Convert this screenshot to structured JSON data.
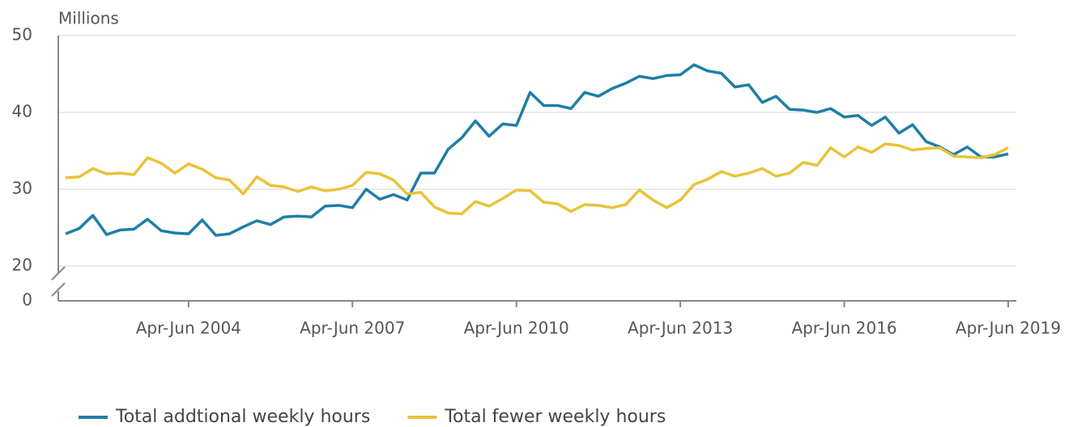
{
  "chart_data": {
    "type": "line",
    "ylabel": "Millions",
    "categories": [
      null,
      null,
      null,
      null,
      null,
      null,
      null,
      null,
      null,
      "Apr-Jun 2004",
      null,
      null,
      null,
      null,
      null,
      null,
      null,
      null,
      null,
      null,
      null,
      "Apr-Jun 2007",
      null,
      null,
      null,
      null,
      null,
      null,
      null,
      null,
      null,
      null,
      null,
      "Apr-Jun 2010",
      null,
      null,
      null,
      null,
      null,
      null,
      null,
      null,
      null,
      null,
      null,
      "Apr-Jun 2013",
      null,
      null,
      null,
      null,
      null,
      null,
      null,
      null,
      null,
      null,
      null,
      "Apr-Jun 2016",
      null,
      null,
      null,
      null,
      null,
      null,
      null,
      null,
      null,
      null,
      null,
      "Apr-Jun 2019"
    ],
    "series": [
      {
        "name": "Total addtional weekly hours",
        "color": "#1f7ea6",
        "values": [
          24.2,
          24.9,
          26.6,
          24.1,
          24.7,
          24.8,
          26.1,
          24.6,
          24.3,
          24.2,
          26.0,
          24.0,
          24.2,
          25.1,
          25.9,
          25.4,
          26.4,
          26.5,
          26.4,
          27.8,
          27.9,
          27.6,
          30.0,
          28.7,
          29.3,
          28.6,
          32.1,
          32.1,
          35.2,
          36.7,
          38.9,
          36.9,
          38.5,
          38.3,
          42.6,
          40.9,
          40.9,
          40.5,
          42.6,
          42.1,
          43.1,
          43.8,
          44.7,
          44.4,
          44.8,
          44.9,
          46.2,
          45.4,
          45.1,
          43.3,
          43.6,
          41.3,
          42.1,
          40.4,
          40.3,
          40.0,
          40.5,
          39.4,
          39.6,
          38.3,
          39.4,
          37.3,
          38.4,
          36.2,
          35.5,
          34.5,
          35.5,
          34.2,
          34.2,
          34.6
        ]
      },
      {
        "name": "Total fewer weekly hours",
        "color": "#e8c33a",
        "values": [
          31.5,
          31.6,
          32.7,
          32.0,
          32.1,
          31.9,
          34.1,
          33.4,
          32.1,
          33.3,
          32.6,
          31.5,
          31.2,
          29.4,
          31.6,
          30.5,
          30.3,
          29.7,
          30.3,
          29.8,
          30.0,
          30.5,
          32.2,
          32.0,
          31.2,
          29.4,
          29.6,
          27.7,
          26.9,
          26.8,
          28.4,
          27.8,
          28.8,
          29.9,
          29.8,
          28.3,
          28.1,
          27.1,
          28.0,
          27.9,
          27.6,
          28.0,
          29.9,
          28.6,
          27.6,
          28.6,
          30.6,
          31.3,
          32.3,
          31.7,
          32.1,
          32.7,
          31.7,
          32.1,
          33.5,
          33.1,
          35.4,
          34.2,
          35.5,
          34.8,
          35.9,
          35.7,
          35.1,
          35.3,
          35.4,
          34.3,
          34.2,
          34.1,
          34.5,
          35.4
        ]
      }
    ],
    "ylim": [
      20,
      50
    ],
    "yticks": [
      0,
      20,
      30,
      40,
      50
    ],
    "axis_break": true,
    "grid": true
  }
}
